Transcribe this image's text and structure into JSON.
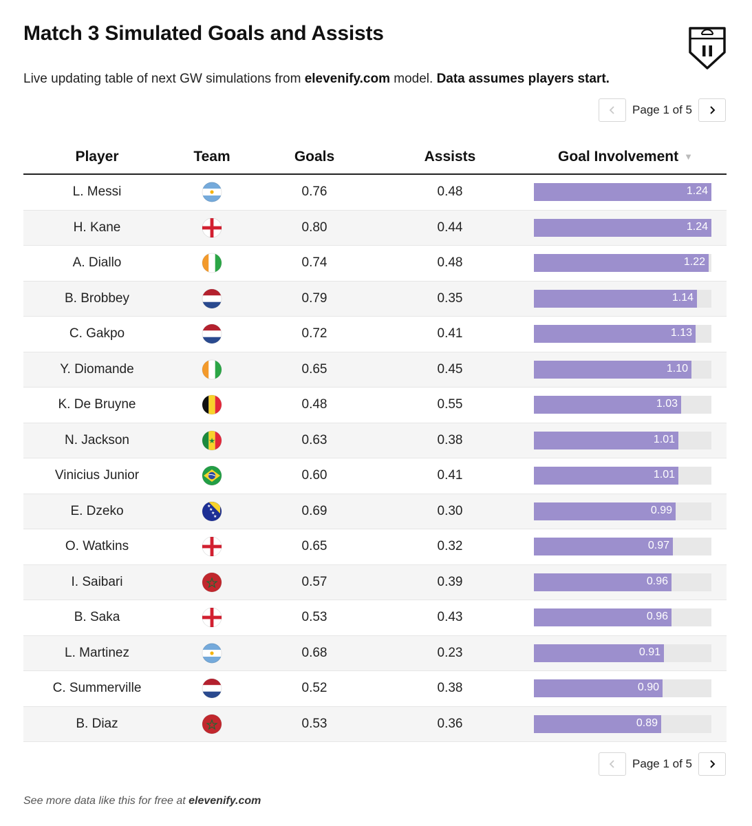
{
  "title": "Match 3 Simulated Goals and Assists",
  "subtitle": {
    "part1": "Live updating table of next GW simulations from ",
    "site": "elevenify.com",
    "part2": " model. ",
    "assumption": "Data assumes players start."
  },
  "pagination": {
    "text": "Page 1 of 5"
  },
  "columns": {
    "player": "Player",
    "team": "Team",
    "goals": "Goals",
    "assists": "Assists",
    "goal_involvement": "Goal Involvement"
  },
  "colors": {
    "bar": "#9c8fcd",
    "track": "#e8e8e8"
  },
  "bar_max": 1.24,
  "rows": [
    {
      "player": "L. Messi",
      "team": "argentina",
      "goals": "0.76",
      "assists": "0.48",
      "gi": "1.24",
      "gi_value": 1.24
    },
    {
      "player": "H. Kane",
      "team": "england",
      "goals": "0.80",
      "assists": "0.44",
      "gi": "1.24",
      "gi_value": 1.24
    },
    {
      "player": "A. Diallo",
      "team": "ivory-coast",
      "goals": "0.74",
      "assists": "0.48",
      "gi": "1.22",
      "gi_value": 1.22
    },
    {
      "player": "B. Brobbey",
      "team": "netherlands",
      "goals": "0.79",
      "assists": "0.35",
      "gi": "1.14",
      "gi_value": 1.14
    },
    {
      "player": "C. Gakpo",
      "team": "netherlands",
      "goals": "0.72",
      "assists": "0.41",
      "gi": "1.13",
      "gi_value": 1.13
    },
    {
      "player": "Y. Diomande",
      "team": "ivory-coast",
      "goals": "0.65",
      "assists": "0.45",
      "gi": "1.10",
      "gi_value": 1.1
    },
    {
      "player": "K. De Bruyne",
      "team": "belgium",
      "goals": "0.48",
      "assists": "0.55",
      "gi": "1.03",
      "gi_value": 1.03
    },
    {
      "player": "N. Jackson",
      "team": "senegal",
      "goals": "0.63",
      "assists": "0.38",
      "gi": "1.01",
      "gi_value": 1.01
    },
    {
      "player": "Vinicius Junior",
      "team": "brazil",
      "goals": "0.60",
      "assists": "0.41",
      "gi": "1.01",
      "gi_value": 1.01
    },
    {
      "player": "E. Dzeko",
      "team": "bosnia",
      "goals": "0.69",
      "assists": "0.30",
      "gi": "0.99",
      "gi_value": 0.99
    },
    {
      "player": "O. Watkins",
      "team": "england",
      "goals": "0.65",
      "assists": "0.32",
      "gi": "0.97",
      "gi_value": 0.97
    },
    {
      "player": "I. Saibari",
      "team": "morocco",
      "goals": "0.57",
      "assists": "0.39",
      "gi": "0.96",
      "gi_value": 0.96
    },
    {
      "player": "B. Saka",
      "team": "england",
      "goals": "0.53",
      "assists": "0.43",
      "gi": "0.96",
      "gi_value": 0.96
    },
    {
      "player": "L. Martinez",
      "team": "argentina",
      "goals": "0.68",
      "assists": "0.23",
      "gi": "0.91",
      "gi_value": 0.91
    },
    {
      "player": "C. Summerville",
      "team": "netherlands",
      "goals": "0.52",
      "assists": "0.38",
      "gi": "0.90",
      "gi_value": 0.9
    },
    {
      "player": "B. Diaz",
      "team": "morocco",
      "goals": "0.53",
      "assists": "0.36",
      "gi": "0.89",
      "gi_value": 0.89
    }
  ],
  "footer": {
    "prefix": "See more data like this for free at ",
    "site": "elevenify.com"
  }
}
